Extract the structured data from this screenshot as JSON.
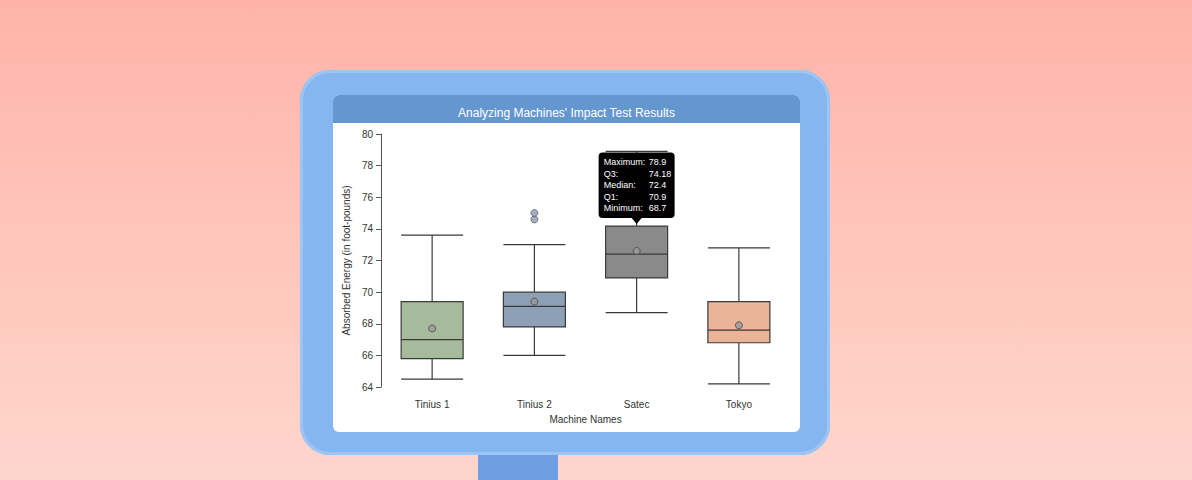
{
  "chart_data": {
    "type": "boxplot",
    "title": "Analyzing Machines' Impact Test Results",
    "x_label": "Machine Names",
    "y_label": "Absorbed Energy (in foot-pounds)",
    "categories": [
      "Tinius 1",
      "Tinius 2",
      "Satec",
      "Tokyo"
    ],
    "colors": [
      "#a6bb9c",
      "#8ea0b6",
      "#8a8a8a",
      "#ebb397"
    ],
    "min": [
      64.5,
      66.0,
      68.7,
      64.2
    ],
    "q1": [
      65.8,
      67.8,
      70.9,
      66.8
    ],
    "median": [
      67.0,
      69.1,
      72.4,
      67.6
    ],
    "q3": [
      69.4,
      70.0,
      74.18,
      69.4
    ],
    "max": [
      73.6,
      73.0,
      78.9,
      72.8
    ],
    "means": [
      67.7,
      69.4,
      72.6,
      67.9
    ],
    "outliers": [
      {
        "category": "Tinius 2",
        "values": [
          74.6,
          75
        ]
      }
    ],
    "ylim": [
      64,
      80
    ],
    "yticks": [
      64,
      66,
      68,
      70,
      72,
      74,
      76,
      78,
      80
    ],
    "grid": false,
    "annotations": [
      {
        "category": "Satec",
        "labels": [
          "Maximum:",
          "Q3:",
          "Median:",
          "Q1:",
          "Minimum:"
        ]
      }
    ]
  }
}
